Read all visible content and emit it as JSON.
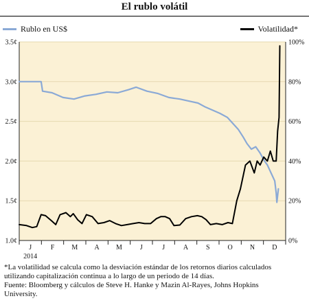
{
  "chart_data": {
    "type": "line",
    "title": "El rublo volátil",
    "series": [
      {
        "name": "Rublo en US$",
        "axis": "left",
        "color": "#8aa9d6",
        "points": [
          [
            0,
            3.0
          ],
          [
            15,
            3.0
          ],
          [
            30,
            3.0
          ],
          [
            32,
            2.88
          ],
          [
            45,
            2.86
          ],
          [
            60,
            2.8
          ],
          [
            75,
            2.78
          ],
          [
            90,
            2.82
          ],
          [
            105,
            2.84
          ],
          [
            120,
            2.87
          ],
          [
            135,
            2.86
          ],
          [
            150,
            2.9
          ],
          [
            160,
            2.93
          ],
          [
            175,
            2.88
          ],
          [
            190,
            2.85
          ],
          [
            205,
            2.8
          ],
          [
            220,
            2.78
          ],
          [
            235,
            2.75
          ],
          [
            245,
            2.73
          ],
          [
            255,
            2.68
          ],
          [
            265,
            2.64
          ],
          [
            275,
            2.6
          ],
          [
            285,
            2.55
          ],
          [
            292,
            2.48
          ],
          [
            300,
            2.4
          ],
          [
            307,
            2.3
          ],
          [
            312,
            2.22
          ],
          [
            318,
            2.15
          ],
          [
            324,
            2.18
          ],
          [
            330,
            2.1
          ],
          [
            336,
            2.0
          ],
          [
            340,
            1.95
          ],
          [
            345,
            1.85
          ],
          [
            350,
            1.75
          ],
          [
            352,
            1.6
          ],
          [
            353,
            1.48
          ],
          [
            355,
            1.65
          ]
        ]
      },
      {
        "name": "Volatilidad*",
        "axis": "right",
        "color": "#000000",
        "points": [
          [
            0,
            8
          ],
          [
            10,
            7.5
          ],
          [
            18,
            6.5
          ],
          [
            24,
            7
          ],
          [
            30,
            13
          ],
          [
            36,
            12.5
          ],
          [
            44,
            10
          ],
          [
            50,
            8
          ],
          [
            56,
            13
          ],
          [
            64,
            14
          ],
          [
            70,
            12
          ],
          [
            74,
            13.5
          ],
          [
            80,
            10.5
          ],
          [
            86,
            8.5
          ],
          [
            92,
            13
          ],
          [
            100,
            12
          ],
          [
            108,
            8.5
          ],
          [
            116,
            9
          ],
          [
            124,
            10
          ],
          [
            132,
            8.5
          ],
          [
            140,
            7.5
          ],
          [
            148,
            8
          ],
          [
            156,
            8.5
          ],
          [
            164,
            9
          ],
          [
            172,
            8.5
          ],
          [
            180,
            8.5
          ],
          [
            188,
            11
          ],
          [
            194,
            12
          ],
          [
            200,
            12
          ],
          [
            206,
            11
          ],
          [
            212,
            7.5
          ],
          [
            220,
            7.8
          ],
          [
            228,
            11
          ],
          [
            236,
            12
          ],
          [
            244,
            12.5
          ],
          [
            250,
            12
          ],
          [
            256,
            10.5
          ],
          [
            262,
            8
          ],
          [
            270,
            8.5
          ],
          [
            278,
            8
          ],
          [
            286,
            9
          ],
          [
            292,
            8.5
          ],
          [
            298,
            20
          ],
          [
            303,
            26
          ],
          [
            310,
            38
          ],
          [
            316,
            40
          ],
          [
            322,
            34
          ],
          [
            326,
            40
          ],
          [
            330,
            38
          ],
          [
            335,
            42
          ],
          [
            340,
            40
          ],
          [
            344,
            45
          ],
          [
            348,
            40
          ],
          [
            352,
            40
          ],
          [
            354,
            55
          ],
          [
            356,
            62
          ],
          [
            357,
            98
          ]
        ]
      }
    ],
    "left_axis": {
      "min": 1.0,
      "max": 3.5,
      "ticks": [
        "1.0¢",
        "1.5¢",
        "2.0¢",
        "2.5¢",
        "3.0¢",
        "3.5¢"
      ]
    },
    "right_axis": {
      "min": 0,
      "max": 100,
      "ticks": [
        "0%",
        "20%",
        "40%",
        "60%",
        "80%",
        "100%"
      ]
    },
    "x_axis": {
      "months": [
        "J",
        "F",
        "M",
        "A",
        "M",
        "J",
        "J",
        "A",
        "S",
        "O",
        "N",
        "D"
      ],
      "year_label": "2014"
    },
    "grid": true,
    "legend": "top"
  },
  "footnote": {
    "line1": "*La volatilidad se calcula como la desviación estándar de los retornos diarios calculados",
    "line2": "utilizando capitalización continua a lo largo de un periodo de 14 días.",
    "line3": "Fuente: Bloomberg y cálculos de Steve H. Hanke y Mazin Al-Rayes, Johns Hopkins",
    "line4": "University."
  }
}
